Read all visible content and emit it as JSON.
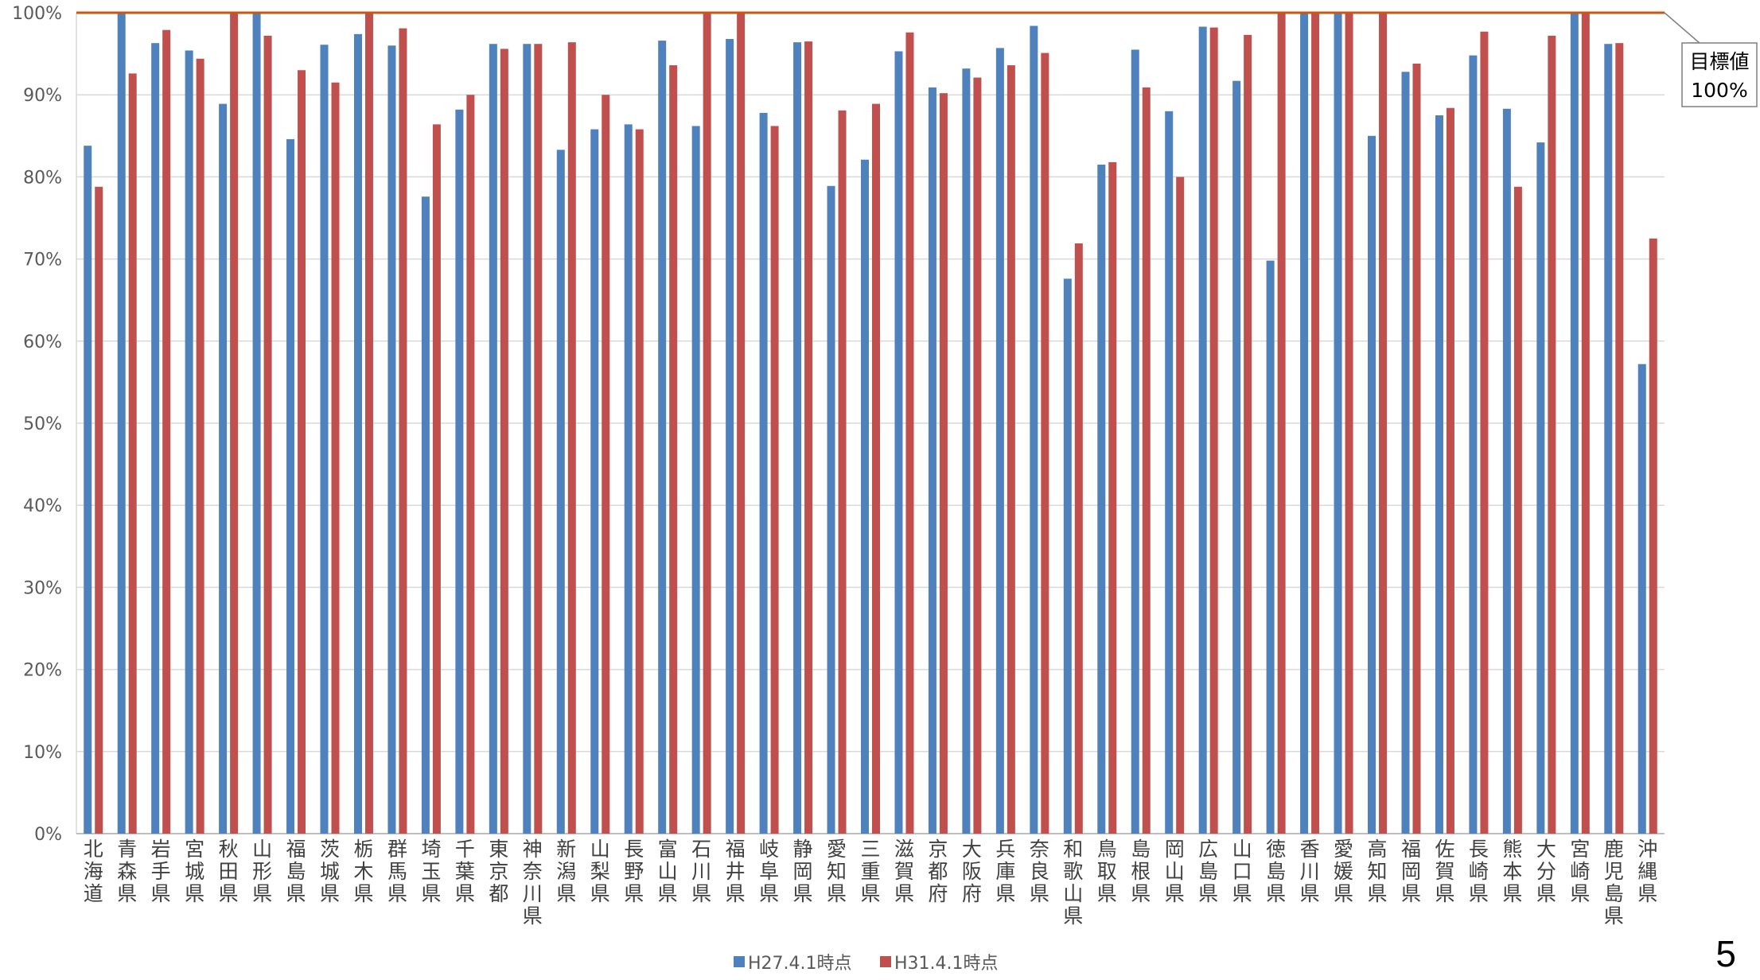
{
  "page_number": "5",
  "colors": {
    "series1": "#4F81BD",
    "series2": "#C0504D",
    "target_line": "#C65911",
    "grid": "#D9D9D9"
  },
  "chart_data": {
    "type": "bar",
    "title": "",
    "xlabel": "",
    "ylabel": "",
    "ylim": [
      0,
      100
    ],
    "yticks": [
      0,
      10,
      20,
      30,
      40,
      50,
      60,
      70,
      80,
      90,
      100
    ],
    "ytick_suffix": "%",
    "grid": true,
    "legend_position": "bottom",
    "categories": [
      "北海道",
      "青森県",
      "岩手県",
      "宮城県",
      "秋田県",
      "山形県",
      "福島県",
      "茨城県",
      "栃木県",
      "群馬県",
      "埼玉県",
      "千葉県",
      "東京都",
      "神奈川県",
      "新潟県",
      "山梨県",
      "長野県",
      "富山県",
      "石川県",
      "福井県",
      "岐阜県",
      "静岡県",
      "愛知県",
      "三重県",
      "滋賀県",
      "京都府",
      "大阪府",
      "兵庫県",
      "奈良県",
      "和歌山県",
      "鳥取県",
      "島根県",
      "岡山県",
      "広島県",
      "山口県",
      "徳島県",
      "香川県",
      "愛媛県",
      "高知県",
      "福岡県",
      "佐賀県",
      "長崎県",
      "熊本県",
      "大分県",
      "宮崎県",
      "鹿児島県",
      "沖縄県"
    ],
    "series": [
      {
        "name": "H27.4.1時点",
        "values": [
          83.8,
          100,
          96.3,
          95.4,
          88.9,
          100,
          84.6,
          96.1,
          97.4,
          96.0,
          77.6,
          88.2,
          96.2,
          96.2,
          83.3,
          85.8,
          86.4,
          96.6,
          86.2,
          96.8,
          87.8,
          96.4,
          78.9,
          82.1,
          95.3,
          90.9,
          93.2,
          95.7,
          98.4,
          67.6,
          81.5,
          95.5,
          88.0,
          98.3,
          91.7,
          69.8,
          100,
          100,
          85.0,
          92.8,
          87.5,
          94.8,
          88.3,
          84.2,
          100,
          96.2,
          57.2
        ]
      },
      {
        "name": "H31.4.1時点",
        "values": [
          78.8,
          92.6,
          97.9,
          94.4,
          100,
          97.2,
          93.0,
          91.5,
          100,
          98.1,
          86.4,
          90.0,
          95.6,
          96.2,
          96.4,
          90.0,
          85.8,
          93.6,
          100,
          100,
          86.2,
          96.5,
          88.1,
          88.9,
          97.6,
          90.2,
          92.1,
          93.6,
          95.1,
          71.9,
          81.8,
          90.9,
          80.0,
          98.2,
          97.3,
          100,
          100,
          100,
          100,
          93.8,
          88.4,
          97.7,
          78.8,
          97.2,
          100,
          96.3,
          72.5
        ]
      }
    ],
    "target": {
      "value": 100,
      "label_line1": "目標値",
      "label_line2": "100%"
    }
  }
}
